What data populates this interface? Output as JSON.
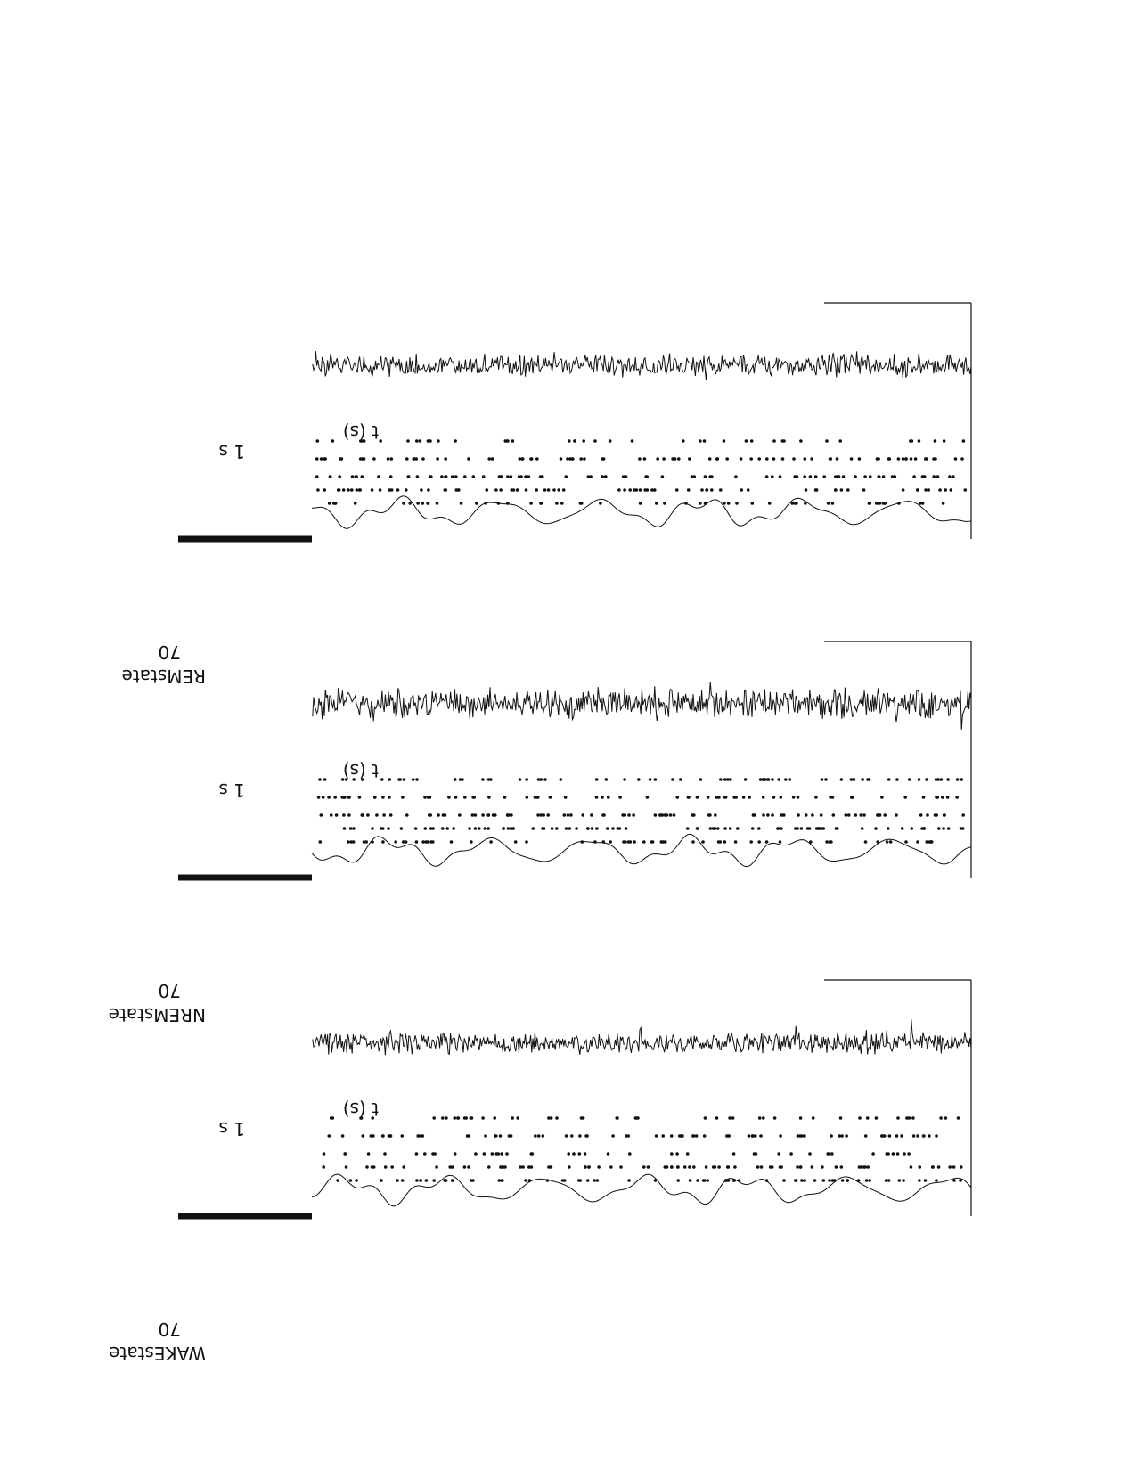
{
  "chart_data": [
    {
      "type": "line",
      "ylabel": "WAKEstate",
      "ytick": "70",
      "xlabel": "t (s)",
      "scalebar": {
        "value": 1,
        "label": "1 s"
      },
      "series": [
        {
          "role": "broadband-trace"
        },
        {
          "role": "spike-raster"
        },
        {
          "role": "filtered-trace"
        }
      ]
    },
    {
      "type": "line",
      "ylabel": "NREMstate",
      "ytick": "70",
      "xlabel": "t (s)",
      "scalebar": {
        "value": 1,
        "label": "1 s"
      },
      "series": [
        {
          "role": "broadband-trace"
        },
        {
          "role": "spike-raster"
        },
        {
          "role": "filtered-trace"
        }
      ]
    },
    {
      "type": "line",
      "ylabel": "REMstate",
      "ytick": "70",
      "xlabel": "t (s)",
      "scalebar": {
        "value": 1,
        "label": "1 s"
      },
      "series": [
        {
          "role": "broadband-trace"
        },
        {
          "role": "spike-raster"
        },
        {
          "role": "filtered-trace"
        }
      ]
    }
  ],
  "colors": {
    "ink": "#111111",
    "background": "#ffffff"
  }
}
